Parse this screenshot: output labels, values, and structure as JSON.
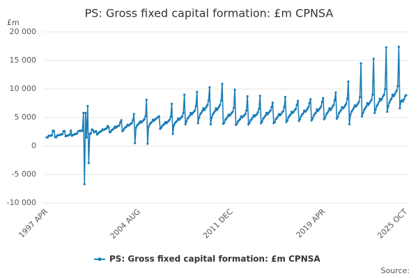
{
  "chart_data": {
    "type": "line",
    "title": "PS: Gross fixed capital formation: £m CPNSA",
    "y_label": "£m",
    "source": "Source:",
    "grid": true,
    "legend": "bottom",
    "ylim": [
      -10000,
      20000
    ],
    "yticks": [
      {
        "value": -10000,
        "label": "-10 000"
      },
      {
        "value": -5000,
        "label": "-5 000"
      },
      0,
      {
        "value": 5000,
        "label": "5 000"
      },
      {
        "value": 10000,
        "label": "10 000"
      },
      {
        "value": 15000,
        "label": "15 000"
      },
      {
        "value": 20000,
        "label": "20 000"
      }
    ],
    "categories": [
      "1997 APR",
      null,
      null,
      null,
      null,
      null,
      null,
      null,
      null,
      null,
      null,
      null,
      null,
      null,
      null,
      null,
      null,
      null,
      null,
      null,
      null,
      null,
      null,
      null,
      null,
      null,
      null,
      null,
      null,
      null,
      null,
      null,
      null,
      null,
      null,
      null,
      null,
      null,
      null,
      null,
      null,
      null,
      null,
      null,
      null,
      null,
      null,
      null,
      null,
      null,
      null,
      null,
      null,
      null,
      null,
      null,
      null,
      null,
      null,
      null,
      null,
      null,
      null,
      null,
      null,
      null,
      null,
      null,
      null,
      null,
      null,
      null,
      null,
      null,
      null,
      null,
      null,
      null,
      null,
      null,
      null,
      null,
      null,
      null,
      null,
      null,
      null,
      null,
      "2004 AUG",
      null,
      null,
      null,
      null,
      null,
      null,
      null,
      null,
      null,
      null,
      null,
      null,
      null,
      null,
      null,
      null,
      null,
      null,
      null,
      null,
      null,
      null,
      null,
      null,
      null,
      null,
      null,
      null,
      null,
      null,
      null,
      null,
      null,
      null,
      null,
      null,
      null,
      null,
      null,
      null,
      null,
      null,
      null,
      null,
      null,
      null,
      null,
      null,
      null,
      null,
      null,
      null,
      null,
      null,
      null,
      null,
      null,
      null,
      null,
      null,
      null,
      null,
      null,
      null,
      null,
      null,
      null,
      null,
      null,
      null,
      null,
      null,
      null,
      null,
      null,
      null,
      null,
      null,
      null,
      null,
      null,
      null,
      null,
      null,
      null,
      null,
      null,
      "2011 DEC",
      null,
      null,
      null,
      null,
      null,
      null,
      null,
      null,
      null,
      null,
      null,
      null,
      null,
      null,
      null,
      null,
      null,
      null,
      null,
      null,
      null,
      null,
      null,
      null,
      null,
      null,
      null,
      null,
      null,
      null,
      null,
      null,
      null,
      null,
      null,
      null,
      null,
      null,
      null,
      null,
      null,
      null,
      null,
      null,
      null,
      null,
      null,
      null,
      null,
      null,
      null,
      null,
      null,
      null,
      null,
      null,
      null,
      null,
      null,
      null,
      null,
      null,
      null,
      null,
      null,
      null,
      null,
      null,
      null,
      null,
      null,
      null,
      null,
      null,
      null,
      null,
      null,
      null,
      null,
      null,
      null,
      null,
      null,
      null,
      null,
      null,
      null,
      "2019 APR",
      null,
      null,
      null,
      null,
      null,
      null,
      null,
      null,
      null,
      null,
      null,
      null,
      null,
      null,
      null,
      null,
      null,
      null,
      null,
      null,
      null,
      null,
      null,
      null,
      null,
      null,
      null,
      null,
      null,
      null,
      null,
      null,
      null,
      null,
      null,
      null,
      null,
      null,
      null,
      null,
      null,
      null,
      null,
      null,
      null,
      null,
      null,
      null,
      null,
      null,
      null,
      null,
      null,
      null,
      null,
      null,
      null,
      null,
      null,
      null,
      null,
      null,
      null,
      null,
      null,
      null,
      null,
      null,
      null,
      null,
      null,
      null,
      null,
      null,
      null,
      null,
      null,
      "2025 OCT"
    ],
    "series": [
      {
        "name": "PS: Gross fixed capital formation: £m CPNSA",
        "color": "#1a7db8",
        "values": [
          1500,
          1500,
          1800,
          1800,
          1800,
          1900,
          2700,
          2600,
          1600,
          1500,
          1800,
          1900,
          1900,
          2000,
          2000,
          2100,
          2600,
          2600,
          1700,
          1800,
          1800,
          1900,
          2000,
          2700,
          1800,
          1900,
          2000,
          2100,
          2100,
          2200,
          2600,
          2600,
          2700,
          2600,
          2700,
          5800,
          -6700,
          5800,
          1500,
          7000,
          -3000,
          2100,
          2200,
          2900,
          2800,
          2400,
          2500,
          2600,
          2000,
          2200,
          2400,
          2500,
          2600,
          2900,
          2800,
          2900,
          3000,
          3100,
          3500,
          3300,
          2400,
          2500,
          2800,
          2900,
          3100,
          3400,
          3200,
          3400,
          3500,
          3600,
          4100,
          4500,
          2600,
          2800,
          3100,
          3300,
          3400,
          3700,
          3600,
          3700,
          3900,
          4000,
          4500,
          5600,
          500,
          3200,
          3600,
          3800,
          4000,
          4300,
          4100,
          4300,
          4500,
          4700,
          5200,
          8100,
          400,
          3400,
          3800,
          4000,
          4200,
          4600,
          4400,
          4600,
          4800,
          4900,
          5100,
          5200,
          3000,
          3200,
          3500,
          3700,
          3900,
          4200,
          4000,
          4200,
          4400,
          4600,
          5100,
          7400,
          2100,
          3600,
          4000,
          4200,
          4400,
          4800,
          4600,
          4800,
          5000,
          5200,
          5800,
          9000,
          3800,
          4300,
          4800,
          5000,
          5300,
          5800,
          5500,
          5800,
          6000,
          6200,
          7000,
          9500,
          4000,
          5000,
          5500,
          5800,
          6100,
          6600,
          6300,
          6600,
          6900,
          7200,
          8000,
          10300,
          3800,
          5000,
          5500,
          5800,
          6100,
          6600,
          6300,
          6600,
          6900,
          7200,
          8000,
          10900,
          3900,
          4100,
          4600,
          4800,
          5100,
          5500,
          5300,
          5500,
          5800,
          6000,
          6700,
          9900,
          3700,
          3900,
          4300,
          4500,
          4700,
          5200,
          5000,
          5200,
          5400,
          5600,
          6200,
          8700,
          3800,
          4100,
          4500,
          4700,
          5000,
          5400,
          5200,
          5400,
          5600,
          5900,
          6500,
          8800,
          4000,
          4300,
          4800,
          5000,
          5300,
          5800,
          5500,
          5800,
          6000,
          6200,
          6800,
          7600,
          4000,
          4200,
          4700,
          4900,
          5200,
          5600,
          5400,
          5600,
          5900,
          6100,
          6800,
          8600,
          4200,
          4500,
          5000,
          5300,
          5500,
          6000,
          5800,
          6000,
          6300,
          6500,
          7200,
          7900,
          4400,
          4700,
          5200,
          5500,
          5700,
          6200,
          6000,
          6200,
          6500,
          6800,
          7500,
          8200,
          4500,
          4800,
          5300,
          5600,
          5800,
          6400,
          6100,
          6400,
          6600,
          6900,
          7700,
          8400,
          4700,
          5000,
          5500,
          5800,
          6100,
          6600,
          6300,
          6600,
          6900,
          7200,
          8000,
          9400,
          4800,
          5100,
          5700,
          6000,
          6300,
          6800,
          6600,
          6800,
          7100,
          7400,
          8300,
          11300,
          3800,
          5500,
          6000,
          6300,
          6600,
          7100,
          6900,
          7100,
          7400,
          7700,
          8600,
          14500,
          5200,
          5800,
          6300,
          6600,
          6900,
          7500,
          7200,
          7500,
          7800,
          8100,
          9000,
          15300,
          5800,
          6400,
          7000,
          7300,
          7700,
          8300,
          8000,
          8300,
          8700,
          9000,
          10000,
          17300,
          6000,
          7000,
          7600,
          8000,
          8300,
          9000,
          8700,
          9000,
          9400,
          9700,
          10500,
          17400,
          6600,
          7800,
          8000,
          7800,
          8200,
          8700,
          8900
        ]
      }
    ]
  }
}
